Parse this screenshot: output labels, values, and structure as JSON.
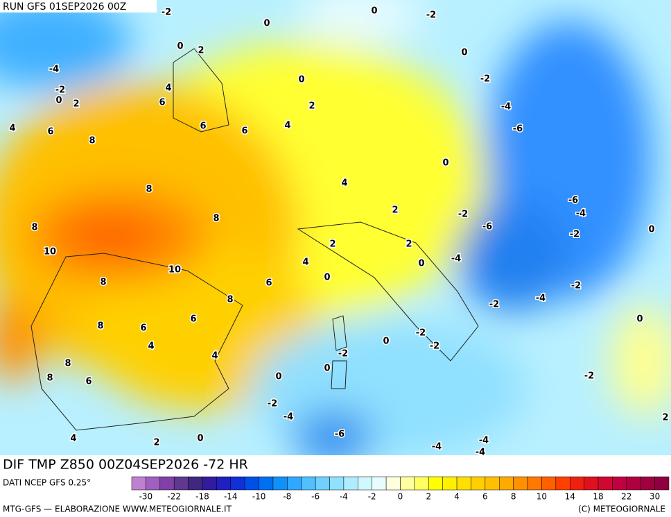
{
  "header": {
    "run": "RUN GFS 01SEP2026 00Z"
  },
  "map": {
    "contour_labels": [
      -2,
      0,
      -2,
      0,
      0,
      2,
      0,
      -4,
      0,
      -2,
      4,
      -2,
      0,
      2,
      6,
      2,
      -4,
      4,
      6,
      6,
      6,
      4,
      -6,
      8,
      0,
      4,
      8,
      -6,
      -4,
      2,
      -2,
      8,
      8,
      -6,
      0,
      -2,
      2,
      2,
      10,
      -4,
      0,
      10,
      4,
      0,
      8,
      6,
      -2,
      8,
      -4,
      -2,
      6,
      0,
      8,
      6,
      -2,
      0,
      4,
      -2,
      4,
      -2,
      8,
      0,
      -2,
      8,
      6,
      0,
      -2,
      -4,
      2,
      -6,
      4,
      0,
      2,
      -4,
      -4,
      -4
    ]
  },
  "footer": {
    "field": "DIF TMP Z850 00Z04SEP2026 -72 HR",
    "source": "DATI NCEP GFS 0.25°",
    "credit": "MTG-GFS — ELABORAZIONE WWW.METEOGIORNALE.IT",
    "copyright": "(C) METEOGIORNALE"
  },
  "legend": {
    "colors": [
      "#c080d0",
      "#a060c0",
      "#8040a8",
      "#603890",
      "#402880",
      "#301c9c",
      "#2020c0",
      "#1030d8",
      "#0050e8",
      "#0070f0",
      "#1090f8",
      "#30a8ff",
      "#50c0ff",
      "#70d0ff",
      "#90e0ff",
      "#b0ecff",
      "#d0f8ff",
      "#e8fcff",
      "#ffffe0",
      "#ffffa0",
      "#ffff60",
      "#ffff00",
      "#fff000",
      "#ffe000",
      "#ffd000",
      "#ffc000",
      "#ffaa00",
      "#ff9000",
      "#ff7800",
      "#ff6000",
      "#ff4000",
      "#f02010",
      "#e01020",
      "#d00830",
      "#c00040",
      "#b00040",
      "#a00040",
      "#900040"
    ],
    "ticks": [
      -30,
      -22,
      -18,
      -14,
      -10,
      -8,
      -6,
      -4,
      -2,
      0,
      2,
      4,
      6,
      8,
      10,
      14,
      18,
      22,
      30
    ]
  }
}
